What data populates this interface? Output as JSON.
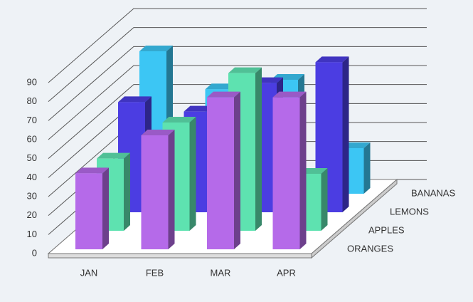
{
  "chart_data": {
    "type": "bar3d",
    "categories": [
      "JAN",
      "FEB",
      "MAR",
      "APR"
    ],
    "series": [
      {
        "name": "ORANGES",
        "color": "#b56ae9",
        "values": [
          40,
          60,
          80,
          80
        ]
      },
      {
        "name": "APPLES",
        "color": "#5ee2b0",
        "values": [
          38,
          57,
          83,
          30
        ]
      },
      {
        "name": "LEMONS",
        "color": "#4b3de2",
        "values": [
          58,
          53,
          68,
          79
        ]
      },
      {
        "name": "BANANAS",
        "color": "#3cc6f4",
        "values": [
          75,
          55,
          60,
          24
        ]
      }
    ],
    "ylim": [
      0,
      90
    ],
    "yticks": [
      0,
      10,
      20,
      30,
      40,
      50,
      60,
      70,
      80,
      90
    ],
    "grid": true
  }
}
